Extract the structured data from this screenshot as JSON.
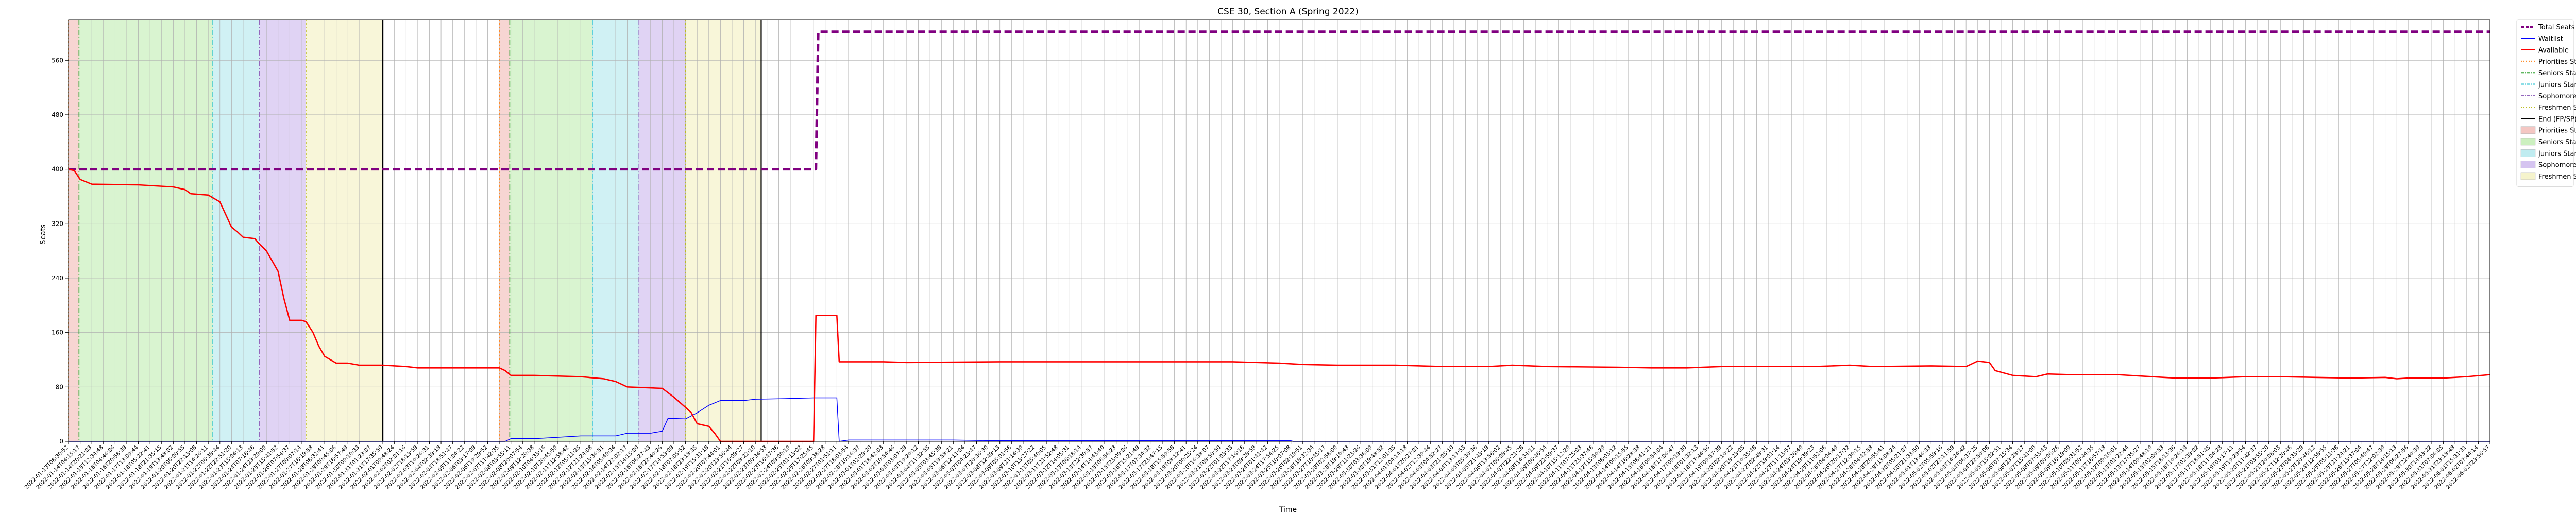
{
  "chart_data": {
    "type": "line",
    "title": "CSE 30, Section A (Spring 2022)",
    "xlabel": "Time",
    "ylabel": "Seats",
    "ylim": [
      0,
      620
    ],
    "yticks": [
      0,
      80,
      160,
      240,
      320,
      400,
      480,
      560
    ],
    "x_range": [
      0,
      208
    ],
    "grid": true,
    "legend_placement": "outside-right-top",
    "x_tick_labels": [
      "2022-01-13T08:30:52",
      "2022-01-14T04:15:17",
      "2022-01-14T20:21:03",
      "2022-01-15T12:34:48",
      "2022-01-16T04:46:06",
      "2022-01-16T20:58:39",
      "2022-01-17T13:09:44",
      "2022-01-18T05:22:41",
      "2022-01-18T21:35:15",
      "2022-01-19T13:48:02",
      "2022-01-20T06:00:55",
      "2022-01-20T22:13:08",
      "2022-01-21T14:26:11",
      "2022-01-22T06:38:44",
      "2022-01-22T22:51:20",
      "2022-01-23T15:04:13",
      "2022-01-24T07:16:46",
      "2022-01-24T23:29:09",
      "2022-01-25T15:41:52",
      "2022-01-26T07:54:37",
      "2022-01-27T00:07:14",
      "2022-01-27T16:19:58",
      "2022-01-28T08:32:41",
      "2022-01-29T00:45:06",
      "2022-01-29T16:57:49",
      "2022-01-30T09:10:33",
      "2022-01-31T01:23:07",
      "2022-01-31T17:35:50",
      "2022-02-01T09:48:24",
      "2022-02-02T02:01:16",
      "2022-02-02T18:13:59",
      "2022-02-03T10:26:31",
      "2022-02-04T02:39:18",
      "2022-02-04T18:51:47",
      "2022-02-05T11:04:22",
      "2022-02-06T03:17:09",
      "2022-02-06T19:29:52",
      "2022-02-07T11:42:35",
      "2022-02-08T03:55:11",
      "2022-02-08T20:07:54",
      "2022-02-09T12:20:38",
      "2022-02-10T04:33:16",
      "2022-02-10T20:45:59",
      "2022-02-11T12:58:42",
      "2022-02-12T05:11:25",
      "2022-02-12T21:24:08",
      "2022-02-13T13:36:51",
      "2022-02-14T05:49:34",
      "2022-02-14T22:02:17",
      "2022-02-15T14:15:00",
      "2022-02-16T06:27:43",
      "2022-02-16T22:40:26",
      "2022-02-17T14:53:09",
      "2022-02-18T07:05:52",
      "2022-02-18T23:18:35",
      "2022-02-19T15:31:18",
      "2022-02-20T07:44:01",
      "2022-02-20T23:56:44",
      "2022-02-21T16:09:27",
      "2022-02-22T08:22:10",
      "2022-02-23T00:34:53",
      "2022-02-23T16:47:36",
      "2022-02-24T09:00:19",
      "2022-02-25T01:13:02",
      "2022-02-25T17:25:45",
      "2022-02-26T09:38:28",
      "2022-02-27T01:51:11",
      "2022-02-27T18:03:54",
      "2022-02-28T10:16:37",
      "2022-03-01T02:29:20",
      "2022-03-01T18:42:03",
      "2022-03-02T10:54:46",
      "2022-03-03T03:07:29",
      "2022-03-03T19:20:12",
      "2022-03-04T11:32:55",
      "2022-03-05T03:45:38",
      "2022-03-05T19:58:21",
      "2022-03-06T12:11:04",
      "2022-03-07T04:23:47",
      "2022-03-07T20:36:30",
      "2022-03-08T12:49:13",
      "2022-03-09T05:01:56",
      "2022-03-09T21:14:39",
      "2022-03-10T13:27:22",
      "2022-03-11T05:40:05",
      "2022-03-11T21:52:48",
      "2022-03-12T14:05:31",
      "2022-03-13T06:18:14",
      "2022-03-13T22:30:57",
      "2022-03-14T14:43:40",
      "2022-03-15T06:56:23",
      "2022-03-15T23:09:06",
      "2022-03-16T15:21:49",
      "2022-03-17T07:34:32",
      "2022-03-17T23:47:15",
      "2022-03-18T15:59:58",
      "2022-03-19T08:12:41",
      "2022-03-20T00:25:24",
      "2022-03-20T16:38:07",
      "2022-03-21T08:50:50",
      "2022-03-22T01:03:33",
      "2022-03-22T17:16:16",
      "2022-03-23T09:28:59",
      "2022-03-24T01:41:42",
      "2022-03-24T17:54:25",
      "2022-03-25T10:07:08",
      "2022-03-26T02:19:51",
      "2022-03-26T18:32:34",
      "2022-03-27T10:45:17",
      "2022-03-28T02:58:00",
      "2022-03-28T19:10:43",
      "2022-03-29T11:23:26",
      "2022-03-30T03:36:09",
      "2022-03-30T19:48:52",
      "2022-03-31T12:01:35",
      "2022-04-01T04:14:18",
      "2022-04-01T20:27:01",
      "2022-04-02T12:39:44",
      "2022-04-03T04:52:27",
      "2022-04-03T21:05:10",
      "2022-04-04T13:17:53",
      "2022-04-05T05:30:36",
      "2022-04-05T21:43:19",
      "2022-04-06T13:56:02",
      "2022-04-07T06:08:45",
      "2022-04-07T22:21:28",
      "2022-04-08T14:34:11",
      "2022-04-09T06:46:54",
      "2022-04-09T22:59:37",
      "2022-04-10T15:12:20",
      "2022-04-11T07:25:03",
      "2022-04-11T23:37:46",
      "2022-04-12T15:50:29",
      "2022-04-13T08:03:12",
      "2022-04-14T00:15:55",
      "2022-04-14T16:28:38",
      "2022-04-15T08:41:21",
      "2022-04-16T00:54:04",
      "2022-04-16T17:06:47",
      "2022-04-17T09:19:30",
      "2022-04-18T01:32:13",
      "2022-04-18T17:44:56",
      "2022-04-19T09:57:39",
      "2022-04-20T02:10:22",
      "2022-04-20T18:23:05",
      "2022-04-21T10:35:48",
      "2022-04-22T02:48:31",
      "2022-04-22T19:01:14",
      "2022-04-23T11:13:57",
      "2022-04-24T03:26:40",
      "2022-04-24T19:39:23",
      "2022-04-25T11:52:06",
      "2022-04-26T04:04:49",
      "2022-04-26T20:17:32",
      "2022-04-27T12:30:15",
      "2022-04-28T04:42:58",
      "2022-04-28T20:55:41",
      "2022-04-29T13:08:24",
      "2022-04-30T05:21:07",
      "2022-04-30T21:33:50",
      "2022-05-01T13:46:33",
      "2022-05-02T05:59:16",
      "2022-05-02T22:11:59",
      "2022-05-03T14:24:42",
      "2022-05-04T06:37:25",
      "2022-05-04T22:50:08",
      "2022-05-05T15:02:51",
      "2022-05-06T07:15:34",
      "2022-05-06T23:28:17",
      "2022-05-07T15:41:00",
      "2022-05-08T07:53:43",
      "2022-05-09T00:06:26",
      "2022-05-09T16:19:09",
      "2022-05-10T08:31:52",
      "2022-05-11T00:44:35",
      "2022-05-11T16:57:18",
      "2022-05-12T09:10:01",
      "2022-05-13T01:22:44",
      "2022-05-13T17:35:27",
      "2022-05-14T09:48:10",
      "2022-05-15T02:00:53",
      "2022-05-15T18:13:36",
      "2022-05-16T10:26:19",
      "2022-05-17T02:39:02",
      "2022-05-17T18:51:45",
      "2022-05-18T11:04:28",
      "2022-05-19T03:17:11",
      "2022-05-19T19:29:54",
      "2022-05-20T11:42:37",
      "2022-05-21T03:55:20",
      "2022-05-21T20:08:03",
      "2022-05-22T12:20:46",
      "2022-05-23T04:33:29",
      "2022-05-23T20:46:12",
      "2022-05-24T12:58:55",
      "2022-05-25T05:11:38",
      "2022-05-25T21:24:21",
      "2022-05-26T13:37:04",
      "2022-05-27T05:49:47",
      "2022-05-27T22:02:30",
      "2022-05-28T14:15:13",
      "2022-05-29T06:27:56",
      "2022-05-29T22:40:39",
      "2022-05-30T14:53:22",
      "2022-05-31T07:06:05",
      "2022-05-31T23:18:48",
      "2022-06-01T15:31:31",
      "2022-06-02T07:44:14",
      "2022-06-02T23:56:57"
    ],
    "bands": [
      {
        "name": "Priorities Start",
        "start": 0.0,
        "end": 0.9,
        "color": "#f4c7c3"
      },
      {
        "name": "Seniors Start",
        "start": 0.9,
        "end": 12.4,
        "color": "#ccf0c0"
      },
      {
        "name": "Juniors Start",
        "start": 12.4,
        "end": 16.4,
        "color": "#c0ecf0"
      },
      {
        "name": "Sophomores Start",
        "start": 16.4,
        "end": 20.4,
        "color": "#d5c4f0"
      },
      {
        "name": "Freshmen Start",
        "start": 20.4,
        "end": 27.0,
        "color": "#f5f3cc"
      },
      {
        "name": "Priorities Start",
        "start": 37.0,
        "end": 37.9,
        "color": "#f4c7c3"
      },
      {
        "name": "Seniors Start",
        "start": 37.9,
        "end": 45.0,
        "color": "#ccf0c0"
      },
      {
        "name": "Juniors Start",
        "start": 45.0,
        "end": 49.0,
        "color": "#c0ecf0"
      },
      {
        "name": "Sophomores Start",
        "start": 49.0,
        "end": 53.0,
        "color": "#d5c4f0"
      },
      {
        "name": "Freshmen Start",
        "start": 53.0,
        "end": 59.5,
        "color": "#f5f3cc"
      }
    ],
    "vlines": [
      {
        "name": "Priorities Start",
        "x": 0.0,
        "style": "dotted",
        "color": "#ff7f0e"
      },
      {
        "name": "Seniors Start",
        "x": 0.9,
        "style": "dashdot",
        "color": "#2ca02c"
      },
      {
        "name": "Juniors Start",
        "x": 12.4,
        "style": "dashdot",
        "color": "#17becf"
      },
      {
        "name": "Sophomores Start",
        "x": 16.4,
        "style": "dashdot",
        "color": "#9467bd"
      },
      {
        "name": "Freshmen Start",
        "x": 20.4,
        "style": "dotted",
        "color": "#bcbd22"
      },
      {
        "name": "End (FP/SP)",
        "x": 27.0,
        "style": "solid",
        "color": "#000000"
      },
      {
        "name": "Priorities Start",
        "x": 37.0,
        "style": "dotted",
        "color": "#ff7f0e"
      },
      {
        "name": "Seniors Start",
        "x": 37.9,
        "style": "dashdot",
        "color": "#2ca02c"
      },
      {
        "name": "Juniors Start",
        "x": 45.0,
        "style": "dashdot",
        "color": "#17becf"
      },
      {
        "name": "Sophomores Start",
        "x": 49.0,
        "style": "dashdot",
        "color": "#9467bd"
      },
      {
        "name": "Freshmen Start",
        "x": 53.0,
        "style": "dotted",
        "color": "#bcbd22"
      },
      {
        "name": "End (FP/SP)",
        "x": 59.5,
        "style": "solid",
        "color": "#000000"
      }
    ],
    "series": [
      {
        "name": "Total Seats",
        "color": "#800080",
        "style": "dashed",
        "points": [
          [
            0,
            400
          ],
          [
            64.2,
            400
          ],
          [
            64.4,
            602
          ],
          [
            208,
            602
          ]
        ]
      },
      {
        "name": "Waitlist",
        "color": "#0000ff",
        "style": "solid",
        "points": [
          [
            0,
            0
          ],
          [
            37.5,
            0
          ],
          [
            38,
            4
          ],
          [
            40,
            4
          ],
          [
            42,
            6
          ],
          [
            44,
            8
          ],
          [
            47,
            8
          ],
          [
            47.5,
            10
          ],
          [
            48,
            12
          ],
          [
            50,
            12
          ],
          [
            51,
            15
          ],
          [
            51.5,
            34
          ],
          [
            53,
            33
          ],
          [
            54,
            42
          ],
          [
            55,
            53
          ],
          [
            56,
            60
          ],
          [
            58,
            60
          ],
          [
            59,
            62
          ],
          [
            62,
            63
          ],
          [
            64,
            64
          ],
          [
            66,
            64
          ],
          [
            66.2,
            0
          ],
          [
            67,
            2
          ],
          [
            76,
            2
          ],
          [
            80,
            1
          ],
          [
            105,
            1
          ],
          [
            105.2,
            0
          ],
          [
            208,
            0
          ]
        ]
      },
      {
        "name": "Available",
        "color": "#ff0000",
        "style": "solid",
        "points": [
          [
            0,
            400
          ],
          [
            0.5,
            398
          ],
          [
            1,
            385
          ],
          [
            2,
            378
          ],
          [
            6,
            377
          ],
          [
            9,
            374
          ],
          [
            10,
            370
          ],
          [
            10.5,
            364
          ],
          [
            12,
            362
          ],
          [
            12.4,
            358
          ],
          [
            13,
            352
          ],
          [
            14,
            315
          ],
          [
            14.5,
            308
          ],
          [
            15,
            300
          ],
          [
            16,
            298
          ],
          [
            16.4,
            290
          ],
          [
            17,
            280
          ],
          [
            18,
            250
          ],
          [
            18.5,
            210
          ],
          [
            19,
            178
          ],
          [
            20,
            178
          ],
          [
            20.4,
            176
          ],
          [
            21,
            160
          ],
          [
            21.5,
            140
          ],
          [
            22,
            125
          ],
          [
            23,
            115
          ],
          [
            24,
            115
          ],
          [
            25,
            112
          ],
          [
            27,
            112
          ],
          [
            29,
            110
          ],
          [
            30,
            108
          ],
          [
            37,
            108
          ],
          [
            37.5,
            104
          ],
          [
            38,
            97
          ],
          [
            40,
            97
          ],
          [
            44,
            95
          ],
          [
            46,
            92
          ],
          [
            47,
            88
          ],
          [
            48,
            80
          ],
          [
            51,
            78
          ],
          [
            52,
            65
          ],
          [
            53,
            50
          ],
          [
            53.5,
            42
          ],
          [
            54,
            26
          ],
          [
            55,
            22
          ],
          [
            55.5,
            12
          ],
          [
            56,
            0
          ],
          [
            64,
            0
          ],
          [
            64.2,
            185
          ],
          [
            66,
            185
          ],
          [
            66.2,
            117
          ],
          [
            70,
            117
          ],
          [
            72,
            116
          ],
          [
            80,
            117
          ],
          [
            90,
            117
          ],
          [
            100,
            117
          ],
          [
            104,
            115
          ],
          [
            106,
            113
          ],
          [
            109,
            112
          ],
          [
            114,
            112
          ],
          [
            118,
            110
          ],
          [
            122,
            110
          ],
          [
            124,
            112
          ],
          [
            127,
            110
          ],
          [
            133,
            109
          ],
          [
            136,
            108
          ],
          [
            139,
            108
          ],
          [
            142,
            110
          ],
          [
            146,
            110
          ],
          [
            150,
            110
          ],
          [
            153,
            112
          ],
          [
            155,
            110
          ],
          [
            160,
            111
          ],
          [
            163,
            110
          ],
          [
            164,
            118
          ],
          [
            165,
            116
          ],
          [
            165.5,
            104
          ],
          [
            167,
            97
          ],
          [
            169,
            95
          ],
          [
            170,
            99
          ],
          [
            172,
            98
          ],
          [
            176,
            98
          ],
          [
            178,
            96
          ],
          [
            181,
            93
          ],
          [
            184,
            93
          ],
          [
            187,
            95
          ],
          [
            190,
            95
          ],
          [
            193,
            94
          ],
          [
            196,
            93
          ],
          [
            199,
            94
          ],
          [
            200,
            92
          ],
          [
            201,
            93
          ],
          [
            204,
            93
          ],
          [
            206,
            95
          ],
          [
            208,
            98
          ]
        ]
      }
    ],
    "legend": [
      {
        "label": "Total Seats",
        "kind": "line",
        "style": "dashed",
        "color": "#800080"
      },
      {
        "label": "Waitlist",
        "kind": "line",
        "style": "solid",
        "color": "#0000ff"
      },
      {
        "label": "Available",
        "kind": "line",
        "style": "solid",
        "color": "#ff0000"
      },
      {
        "label": "Priorities Start",
        "kind": "line",
        "style": "dotted",
        "color": "#ff7f0e"
      },
      {
        "label": "Seniors Start",
        "kind": "line",
        "style": "dashdot",
        "color": "#2ca02c"
      },
      {
        "label": "Juniors Start",
        "kind": "line",
        "style": "dashdot",
        "color": "#17becf"
      },
      {
        "label": "Sophomores Start",
        "kind": "line",
        "style": "dashdot",
        "color": "#9467bd"
      },
      {
        "label": "Freshmen Start",
        "kind": "line",
        "style": "dotted",
        "color": "#bcbd22"
      },
      {
        "label": "End (FP/SP)",
        "kind": "line",
        "style": "solid",
        "color": "#000000"
      },
      {
        "label": "Priorities Start",
        "kind": "patch",
        "color": "#f4c7c3"
      },
      {
        "label": "Seniors Start",
        "kind": "patch",
        "color": "#ccf0c0"
      },
      {
        "label": "Juniors Start",
        "kind": "patch",
        "color": "#c0ecf0"
      },
      {
        "label": "Sophomores Start",
        "kind": "patch",
        "color": "#d5c4f0"
      },
      {
        "label": "Freshmen Start",
        "kind": "patch",
        "color": "#f5f3cc"
      }
    ]
  }
}
